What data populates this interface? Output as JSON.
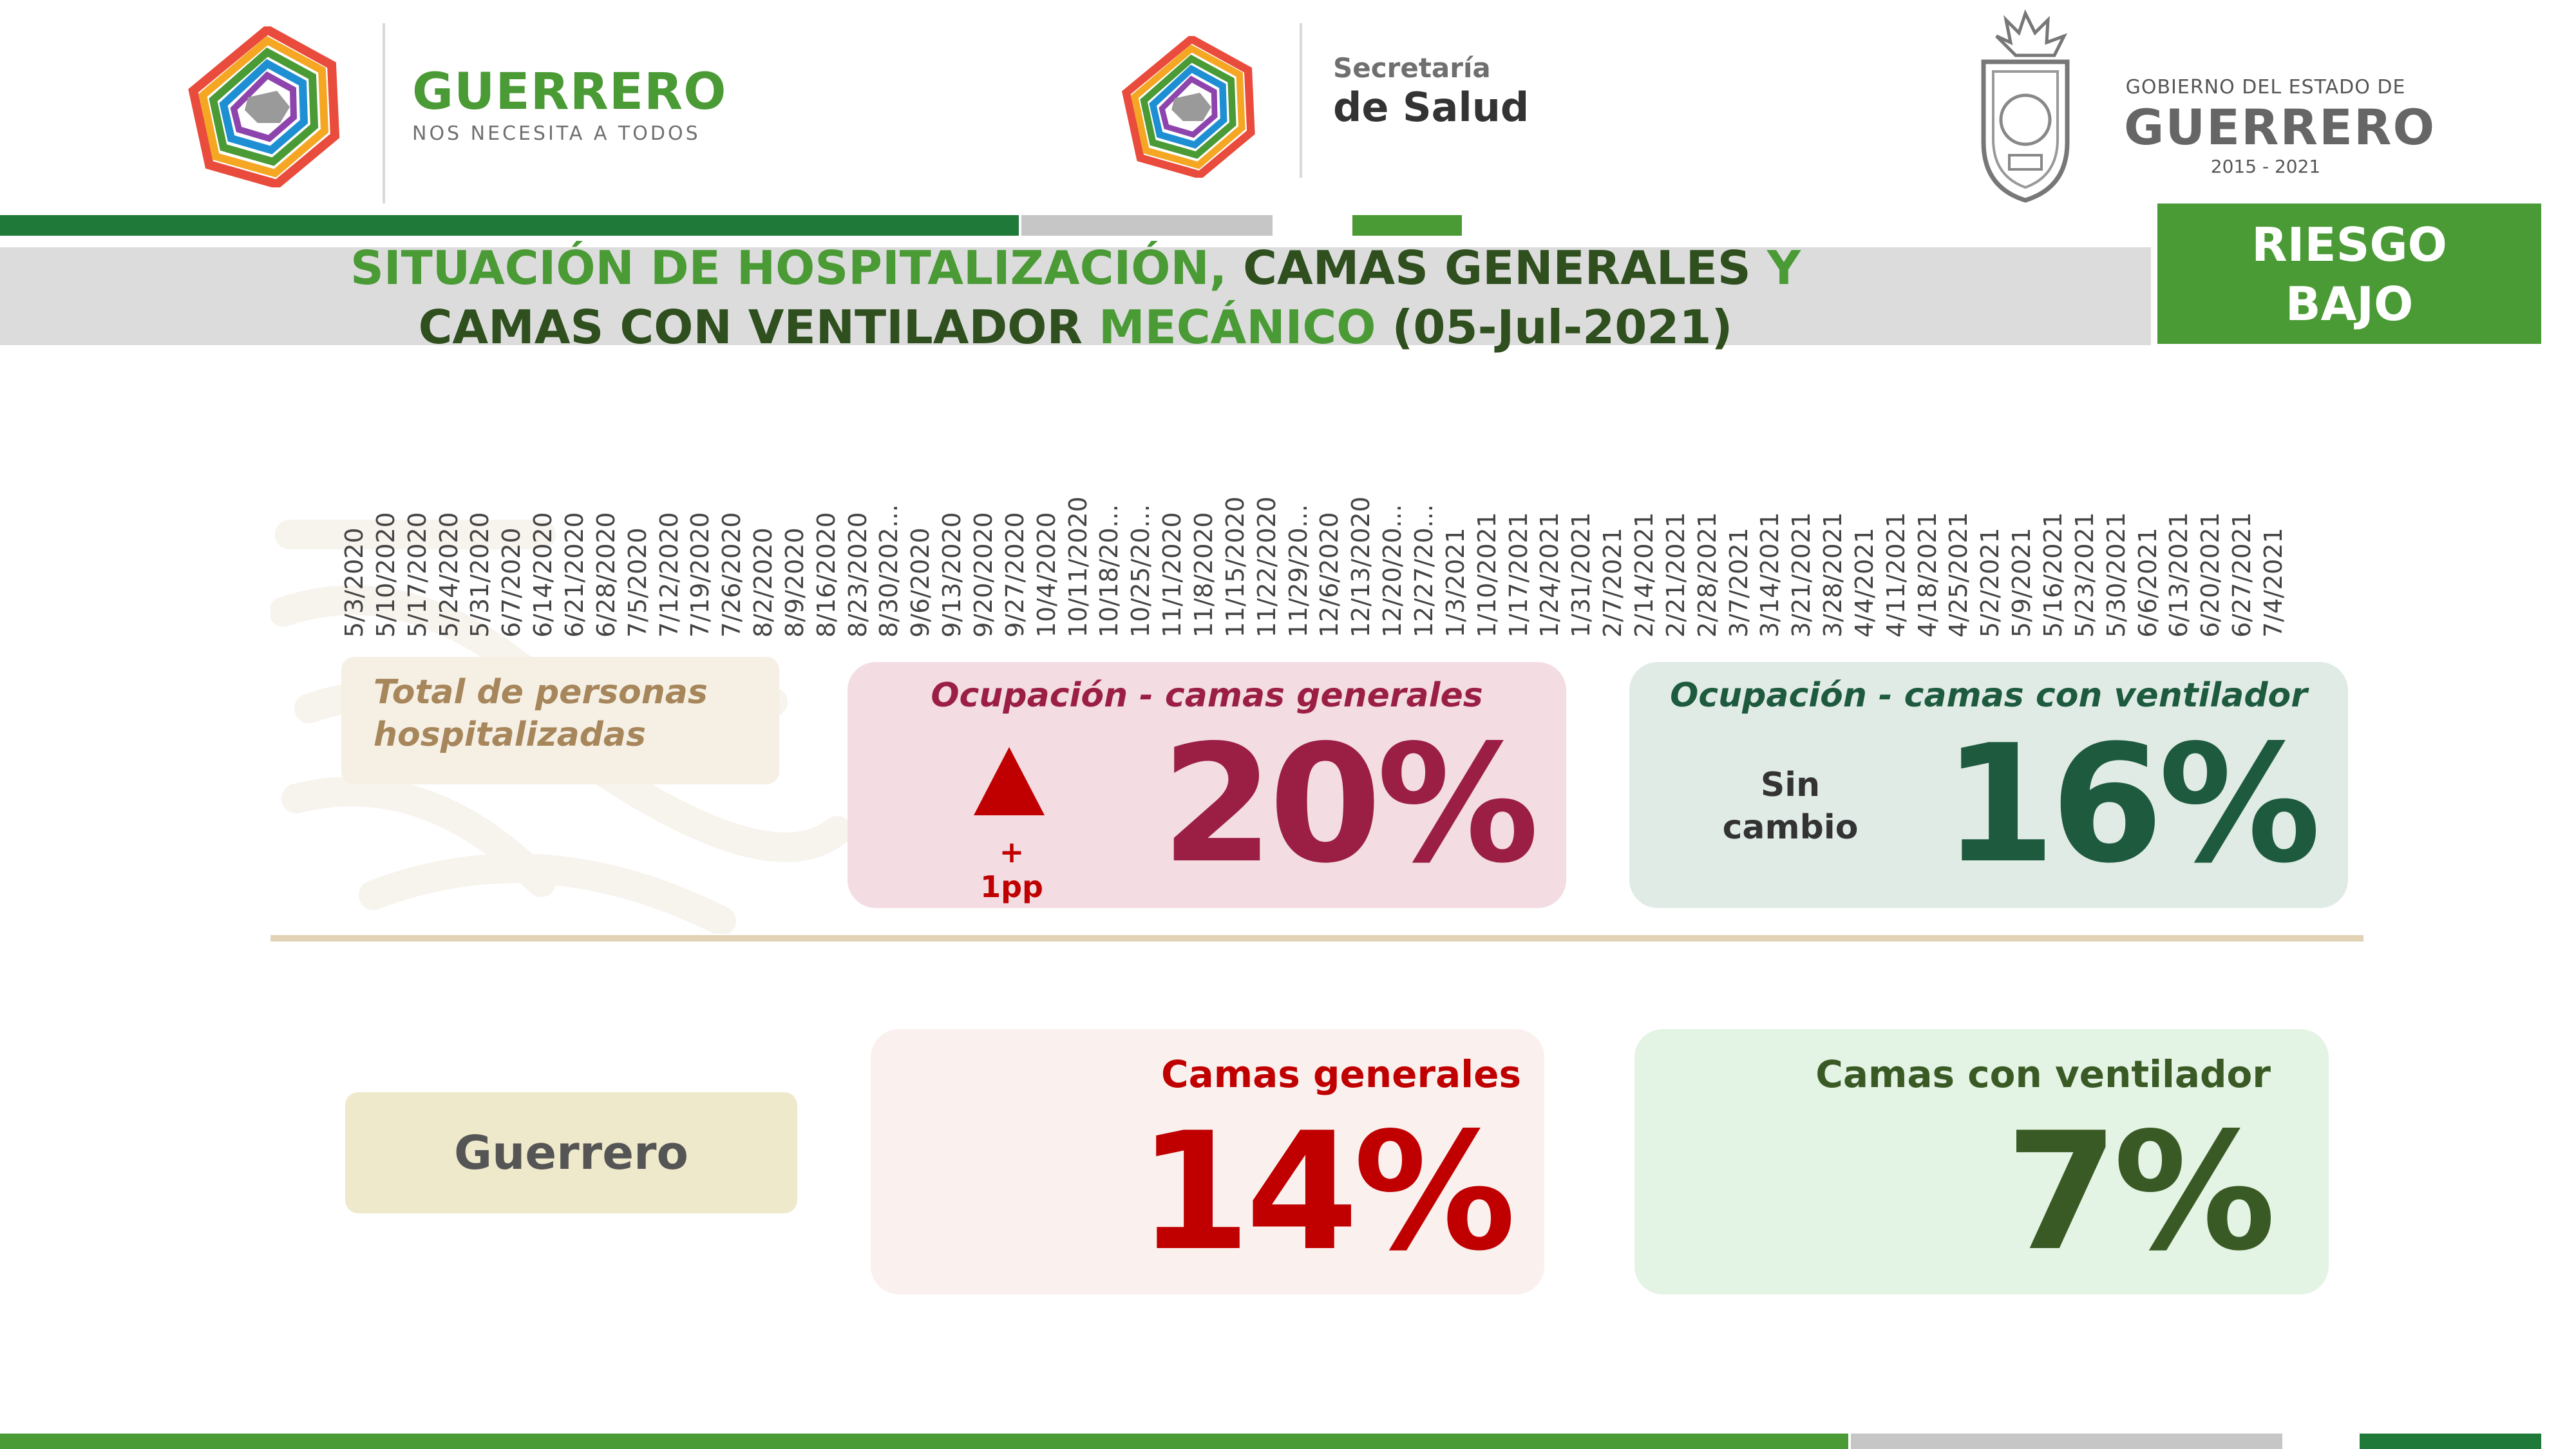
{
  "header": {
    "left_brand": {
      "name": "GUERRERO",
      "tagline": "NOS NECESITA A TODOS"
    },
    "center_brand": {
      "line1": "Secretaría",
      "line2": "de Salud"
    },
    "right_brand": {
      "line1": "GOBIERNO DEL ESTADO DE",
      "line2": "GUERRERO",
      "line3": "2015 - 2021"
    }
  },
  "title": {
    "l1a": "SITUACIÓN DE HOSPITALIZACIÓN,",
    "l1b": " CAMAS GENERALES ",
    "l1c": "Y",
    "l2a": "CAMAS CON VENTILADOR ",
    "l2b": "MECÁNICO",
    "l2c": " (05-Jul-2021)"
  },
  "risk": {
    "line1": "RIESGO",
    "line2": "BAJO"
  },
  "dates": [
    "5/3/2020",
    "5/10/2020",
    "5/17/2020",
    "5/24/2020",
    "5/31/2020",
    "6/7/2020",
    "6/14/2020",
    "6/21/2020",
    "6/28/2020",
    "7/5/2020",
    "7/12/2020",
    "7/19/2020",
    "7/26/2020",
    "8/2/2020",
    "8/9/2020",
    "8/16/2020",
    "8/23/2020",
    "8/30/202...",
    "9/6/2020",
    "9/13/2020",
    "9/20/2020",
    "9/27/2020",
    "10/4/2020",
    "10/11/2020",
    "10/18/20...",
    "10/25/20...",
    "11/1/2020",
    "11/8/2020",
    "11/15/2020",
    "11/22/2020",
    "11/29/20...",
    "12/6/2020",
    "12/13/2020",
    "12/20/20...",
    "12/27/20...",
    "1/3/2021",
    "1/10/2021",
    "1/17/2021",
    "1/24/2021",
    "1/31/2021",
    "2/7/2021",
    "2/14/2021",
    "2/21/2021",
    "2/28/2021",
    "3/7/2021",
    "3/14/2021",
    "3/21/2021",
    "3/28/2021",
    "4/4/2021",
    "4/11/2021",
    "4/18/2021",
    "4/25/2021",
    "5/2/2021",
    "5/9/2021",
    "5/16/2021",
    "5/23/2021",
    "5/30/2021",
    "6/6/2021",
    "6/13/2021",
    "6/20/2021",
    "6/27/2021",
    "7/4/2021"
  ],
  "hospitalized": {
    "line1": "Total de personas",
    "line2": "hospitalizadas"
  },
  "occupancy_general": {
    "label": "Ocupación - camas generales",
    "trend": "+ 1pp",
    "value": "20%"
  },
  "occupancy_ventilator": {
    "label": "Ocupación - camas con ventilador",
    "status_line1": "Sin",
    "status_line2": "cambio",
    "value": "16%"
  },
  "state": {
    "name": "Guerrero"
  },
  "beds_general": {
    "label": "Camas generales",
    "value": "14%"
  },
  "beds_ventilator": {
    "label": "Camas con ventilador",
    "value": "7%"
  },
  "colors": {
    "green": "#4a9a35",
    "dark_green": "#1e5a3e",
    "crimson": "#9b1f45",
    "red": "#c00000",
    "olive_dark": "#3a5a25",
    "tan": "#a6865a"
  }
}
